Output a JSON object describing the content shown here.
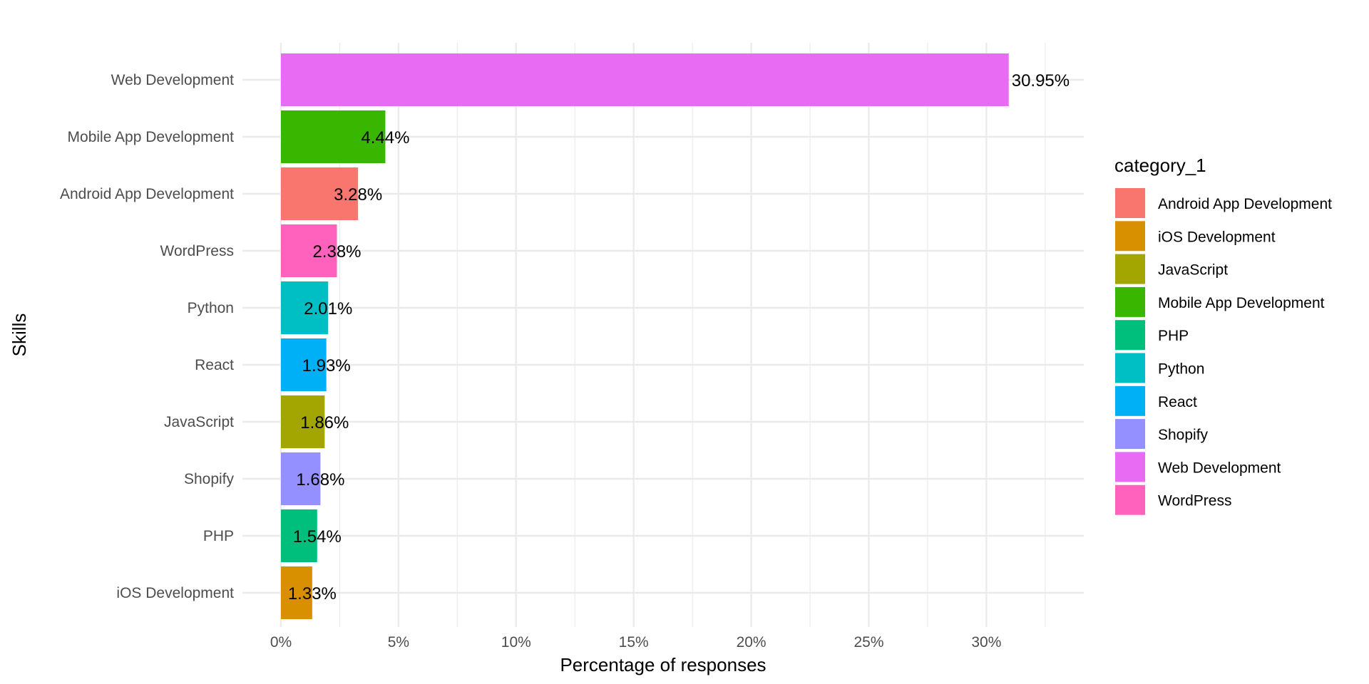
{
  "chart_data": {
    "type": "bar",
    "orientation": "horizontal",
    "title": "",
    "xlabel": "Percentage of responses",
    "ylabel": "Skills",
    "xlim": [
      0,
      34
    ],
    "x_ticks": [
      0,
      5,
      10,
      15,
      20,
      25,
      30
    ],
    "x_tick_labels": [
      "0%",
      "5%",
      "10%",
      "15%",
      "20%",
      "25%",
      "30%"
    ],
    "grid": true,
    "legend_position": "right",
    "legend_title": "category_1",
    "categories": [
      "Web Development",
      "Mobile App Development",
      "Android App Development",
      "WordPress",
      "Python",
      "React",
      "JavaScript",
      "Shopify",
      "PHP",
      "iOS Development"
    ],
    "values": [
      30.95,
      4.44,
      3.28,
      2.38,
      2.01,
      1.93,
      1.86,
      1.68,
      1.54,
      1.33
    ],
    "value_labels": [
      "30.95%",
      "4.44%",
      "3.28%",
      "2.38%",
      "2.01%",
      "1.93%",
      "1.86%",
      "1.68%",
      "1.54%",
      "1.33%"
    ],
    "legend": [
      {
        "label": "Android App Development",
        "color": "#F8766D"
      },
      {
        "label": "iOS Development",
        "color": "#D89000"
      },
      {
        "label": "JavaScript",
        "color": "#A3A500"
      },
      {
        "label": "Mobile App Development",
        "color": "#39B600"
      },
      {
        "label": "PHP",
        "color": "#00BF7D"
      },
      {
        "label": "Python",
        "color": "#00BFC4"
      },
      {
        "label": "React",
        "color": "#00B0F6"
      },
      {
        "label": "Shopify",
        "color": "#9590FF"
      },
      {
        "label": "Web Development",
        "color": "#E76BF3"
      },
      {
        "label": "WordPress",
        "color": "#FF62BC"
      }
    ]
  }
}
